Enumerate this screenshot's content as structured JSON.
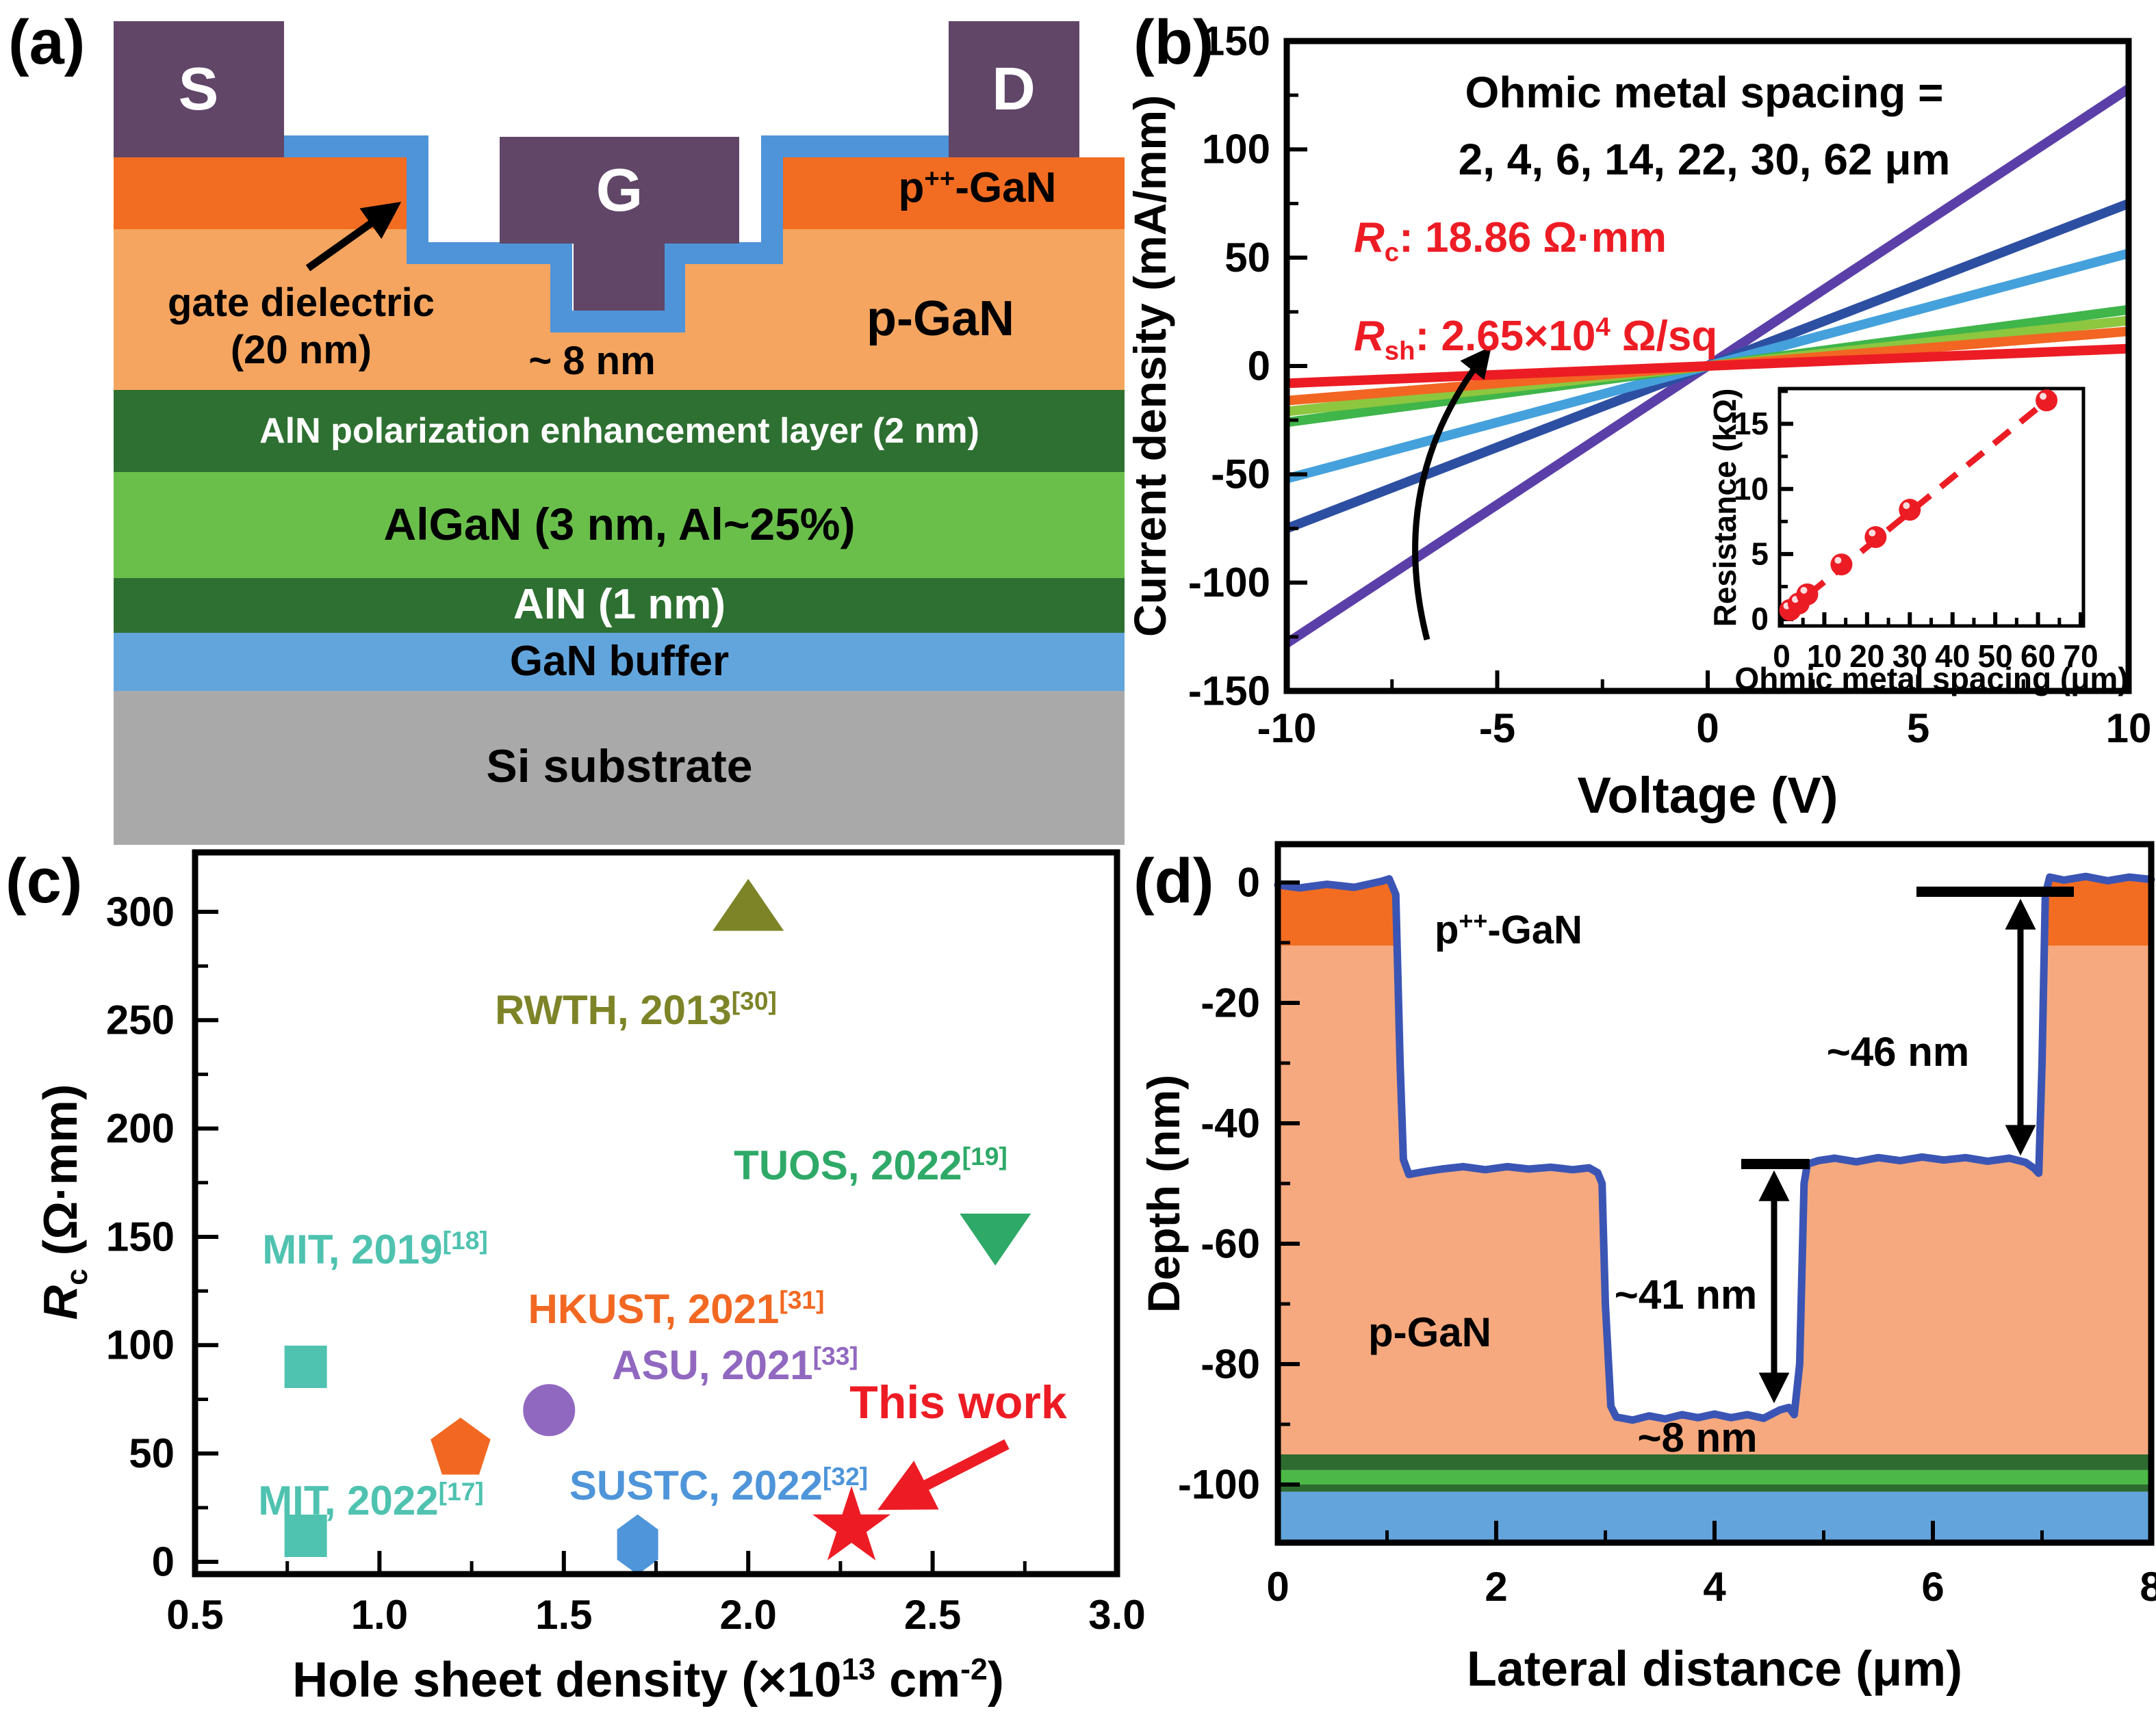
{
  "colors": {
    "contact": "#614668",
    "p_plus_gan": "#f26d21",
    "p_gan": "#f5a55f",
    "dielectric": "#4f94d9",
    "aln_dark_green": "#2e7031",
    "algan_green": "#6abf4b",
    "gan_buffer_blue": "#62a5dc",
    "si_gray": "#a9a9a9",
    "accent_red": "#ed1c24"
  },
  "panels": {
    "a": {
      "tag": "(a)",
      "contacts": {
        "source": "S",
        "gate": "G",
        "drain": "D"
      },
      "labels": {
        "p_plus_gan": {
          "base": "p",
          "sup": "++",
          "rest": "-GaN"
        },
        "p_gan": "p-GaN",
        "gate_dielectric_1": "gate dielectric",
        "gate_dielectric_2": "(20 nm)",
        "recess_depth": "~ 8 nm"
      },
      "layers": {
        "aln_pol": "AlN polarization enhancement layer (2 nm)",
        "algan": "AlGaN (3 nm, Al~25%)",
        "aln": "AlN (1 nm)",
        "gan_buffer": "GaN buffer",
        "si_substrate": "Si substrate"
      }
    },
    "b": {
      "tag": "(b)",
      "title1": "Ohmic metal spacing =",
      "title2": "2, 4, 6, 14, 22, 30, 62 μm",
      "rc": {
        "i": "R",
        "sub": "c",
        "rest": ": 18.86 Ω·mm"
      },
      "rsh": {
        "i": "R",
        "sub": "sh",
        "pre": ": 2.65×10",
        "sup": "4",
        "post": " Ω/sq"
      },
      "xlabel": "Voltage (V)",
      "ylabel": "Current density (mA/mm)",
      "inset": {
        "xlabel": "Ohmic metal spacing (μm)",
        "ylabel": "Resistance (kΩ)"
      }
    },
    "c": {
      "tag": "(c)",
      "ylabel": {
        "i": "R",
        "sub": "c",
        "rest": " (Ω·mm)"
      },
      "xlabel": {
        "pre": "Hole sheet density (×10",
        "sup1": "13",
        "mid": " cm",
        "sup2": "-2",
        "post": ")"
      }
    },
    "d": {
      "tag": "(d)",
      "xlabel": "Lateral distance (μm)",
      "ylabel": "Depth (nm)",
      "ann": {
        "p_plus_gan": {
          "base": "p",
          "sup": "++",
          "rest": "-GaN"
        },
        "p_gan": "p-GaN",
        "d46": "~46 nm",
        "d41": "~41 nm",
        "d8": "~8 nm"
      }
    }
  },
  "chart_data": [
    {
      "id": "iv_curves",
      "type": "line",
      "panel": "b",
      "title": "Ohmic metal spacing = 2, 4, 6, 14, 22, 30, 62 μm",
      "xlabel": "Voltage (V)",
      "ylabel": "Current density (mA/mm)",
      "xlim": [
        -10,
        10
      ],
      "ylim": [
        -150,
        150
      ],
      "xticks": [
        -10,
        -5,
        0,
        5,
        10
      ],
      "yticks": [
        -150,
        -100,
        -50,
        0,
        50,
        100,
        150
      ],
      "annotations": [
        "Rc: 18.86 Ω·mm",
        "Rsh: 2.65×10⁴ Ω/sq"
      ],
      "series": [
        {
          "name": "2 μm",
          "color": "#5b3fa8",
          "slope_mA_per_V": 12.8
        },
        {
          "name": "4 μm",
          "color": "#2d4fa2",
          "slope_mA_per_V": 7.5
        },
        {
          "name": "6 μm",
          "color": "#45a1dc",
          "slope_mA_per_V": 5.2
        },
        {
          "name": "14 μm",
          "color": "#3fb54a",
          "slope_mA_per_V": 2.6
        },
        {
          "name": "22 μm",
          "color": "#8dc63f",
          "slope_mA_per_V": 2.1
        },
        {
          "name": "30 μm",
          "color": "#f26522",
          "slope_mA_per_V": 1.6
        },
        {
          "name": "62 μm",
          "color": "#ec1c24",
          "slope_mA_per_V": 0.8
        }
      ]
    },
    {
      "id": "tlm_resistance_inset",
      "type": "scatter",
      "panel": "b-inset",
      "xlabel": "Ohmic metal spacing (μm)",
      "ylabel": "Resistance (kΩ)",
      "xlim": [
        0,
        70
      ],
      "ylim": [
        0,
        17.5
      ],
      "xticks": [
        0,
        10,
        20,
        30,
        40,
        50,
        60,
        70
      ],
      "yticks": [
        0,
        5,
        10,
        15
      ],
      "x": [
        2,
        4,
        6,
        14,
        22,
        30,
        62
      ],
      "y": [
        0.7,
        1.2,
        1.9,
        4.2,
        6.3,
        8.4,
        16.8
      ],
      "marker_color": "#ec1c24",
      "fit_line": {
        "style": "dashed",
        "color": "#ec1c24",
        "x": [
          0,
          64
        ],
        "y": [
          0.2,
          17.3
        ]
      }
    },
    {
      "id": "rc_benchmark",
      "type": "scatter",
      "panel": "c",
      "xlabel": "Hole sheet density (×10¹³ cm⁻²)",
      "ylabel": "Rc (Ω·mm)",
      "xlim": [
        0.5,
        3.0
      ],
      "ylim": [
        0,
        310
      ],
      "xticks": [
        0.5,
        1.0,
        1.5,
        2.0,
        2.5,
        3.0
      ],
      "yticks": [
        0,
        50,
        100,
        150,
        200,
        250,
        300
      ],
      "points": [
        {
          "label": "MIT, 2019",
          "ref": "[18]",
          "x": 0.8,
          "y": 90,
          "marker": "square",
          "color": "#4fc2b0"
        },
        {
          "label": "MIT, 2022",
          "ref": "[17]",
          "x": 0.8,
          "y": 12,
          "marker": "square",
          "color": "#4fc2b0"
        },
        {
          "label": "HKUST, 2021",
          "ref": "[31]",
          "x": 1.22,
          "y": 52,
          "marker": "pentagon",
          "color": "#f26822"
        },
        {
          "label": "ASU, 2021",
          "ref": "[33]",
          "x": 1.46,
          "y": 70,
          "marker": "circle",
          "color": "#9168c0"
        },
        {
          "label": "SUSTC, 2022",
          "ref": "[32]",
          "x": 1.7,
          "y": 8,
          "marker": "hexagon",
          "color": "#4e95d9"
        },
        {
          "label": "RWTH, 2013",
          "ref": "[30]",
          "x": 2.0,
          "y": 302,
          "marker": "triangle-up",
          "color": "#7d8428"
        },
        {
          "label": "TUOS, 2022",
          "ref": "[19]",
          "x": 2.67,
          "y": 150,
          "marker": "triangle-down",
          "color": "#2fa968"
        },
        {
          "label": "This work",
          "ref": "",
          "x": 2.28,
          "y": 16,
          "marker": "star",
          "color": "#ed1c24"
        }
      ]
    },
    {
      "id": "recess_depth_profile",
      "type": "line",
      "panel": "d",
      "xlabel": "Lateral distance (μm)",
      "ylabel": "Depth (nm)",
      "xlim": [
        0,
        8
      ],
      "ylim": [
        -110,
        6
      ],
      "xticks": [
        0,
        2,
        4,
        6,
        8
      ],
      "yticks": [
        0,
        -20,
        -40,
        -60,
        -80,
        -100
      ],
      "annotations": [
        "~46 nm",
        "~41 nm",
        "~8 nm"
      ],
      "profile_color": "#3b55b5",
      "layer_bands": [
        {
          "name": "p++-GaN",
          "top_nm": 0.6,
          "bottom_nm": -10.5,
          "color": "#f26d21"
        },
        {
          "name": "p-GaN",
          "top_nm": -10.5,
          "bottom_nm": -95,
          "color": "#f6a97e"
        },
        {
          "name": "",
          "top_nm": -95,
          "bottom_nm": -97.6,
          "color": "#2e6b30"
        },
        {
          "name": "",
          "top_nm": -97.6,
          "bottom_nm": -100,
          "color": "#4cb848"
        },
        {
          "name": "",
          "top_nm": -100,
          "bottom_nm": -101.2,
          "color": "#2e6b30"
        },
        {
          "name": "",
          "top_nm": -101.2,
          "bottom_nm": -110,
          "color": "#64a4dc"
        }
      ],
      "profile": [
        [
          0,
          -0.4
        ],
        [
          0.2,
          -0.9
        ],
        [
          0.45,
          -0.3
        ],
        [
          0.7,
          -0.8
        ],
        [
          0.95,
          0.2
        ],
        [
          1.02,
          0.6
        ],
        [
          1.08,
          -2
        ],
        [
          1.12,
          -30
        ],
        [
          1.15,
          -46
        ],
        [
          1.2,
          -48.5
        ],
        [
          1.35,
          -48
        ],
        [
          1.5,
          -47.6
        ],
        [
          1.7,
          -47.2
        ],
        [
          1.9,
          -47.7
        ],
        [
          2.1,
          -47.2
        ],
        [
          2.3,
          -47.6
        ],
        [
          2.5,
          -47.3
        ],
        [
          2.7,
          -47.7
        ],
        [
          2.85,
          -47.4
        ],
        [
          2.93,
          -48.2
        ],
        [
          2.97,
          -50
        ],
        [
          3.0,
          -70
        ],
        [
          3.05,
          -87
        ],
        [
          3.1,
          -88.8
        ],
        [
          3.25,
          -89.3
        ],
        [
          3.4,
          -88.6
        ],
        [
          3.55,
          -89.1
        ],
        [
          3.7,
          -88.4
        ],
        [
          3.85,
          -88.9
        ],
        [
          4.0,
          -88.3
        ],
        [
          4.15,
          -88.9
        ],
        [
          4.3,
          -88.4
        ],
        [
          4.45,
          -89
        ],
        [
          4.6,
          -87.6
        ],
        [
          4.68,
          -87.2
        ],
        [
          4.73,
          -88.4
        ],
        [
          4.78,
          -80
        ],
        [
          4.82,
          -50
        ],
        [
          4.85,
          -46.8
        ],
        [
          4.95,
          -46.2
        ],
        [
          5.1,
          -45.8
        ],
        [
          5.3,
          -46.4
        ],
        [
          5.5,
          -45.7
        ],
        [
          5.7,
          -46.2
        ],
        [
          5.9,
          -45.6
        ],
        [
          6.1,
          -46.1
        ],
        [
          6.3,
          -45.7
        ],
        [
          6.5,
          -46.3
        ],
        [
          6.7,
          -45.8
        ],
        [
          6.85,
          -46.5
        ],
        [
          6.93,
          -47.5
        ],
        [
          6.97,
          -48.3
        ],
        [
          7.0,
          -30
        ],
        [
          7.03,
          -2
        ],
        [
          7.07,
          0.9
        ],
        [
          7.2,
          0.4
        ],
        [
          7.4,
          1.0
        ],
        [
          7.6,
          0.3
        ],
        [
          7.8,
          0.9
        ],
        [
          8,
          0.5
        ]
      ]
    }
  ]
}
